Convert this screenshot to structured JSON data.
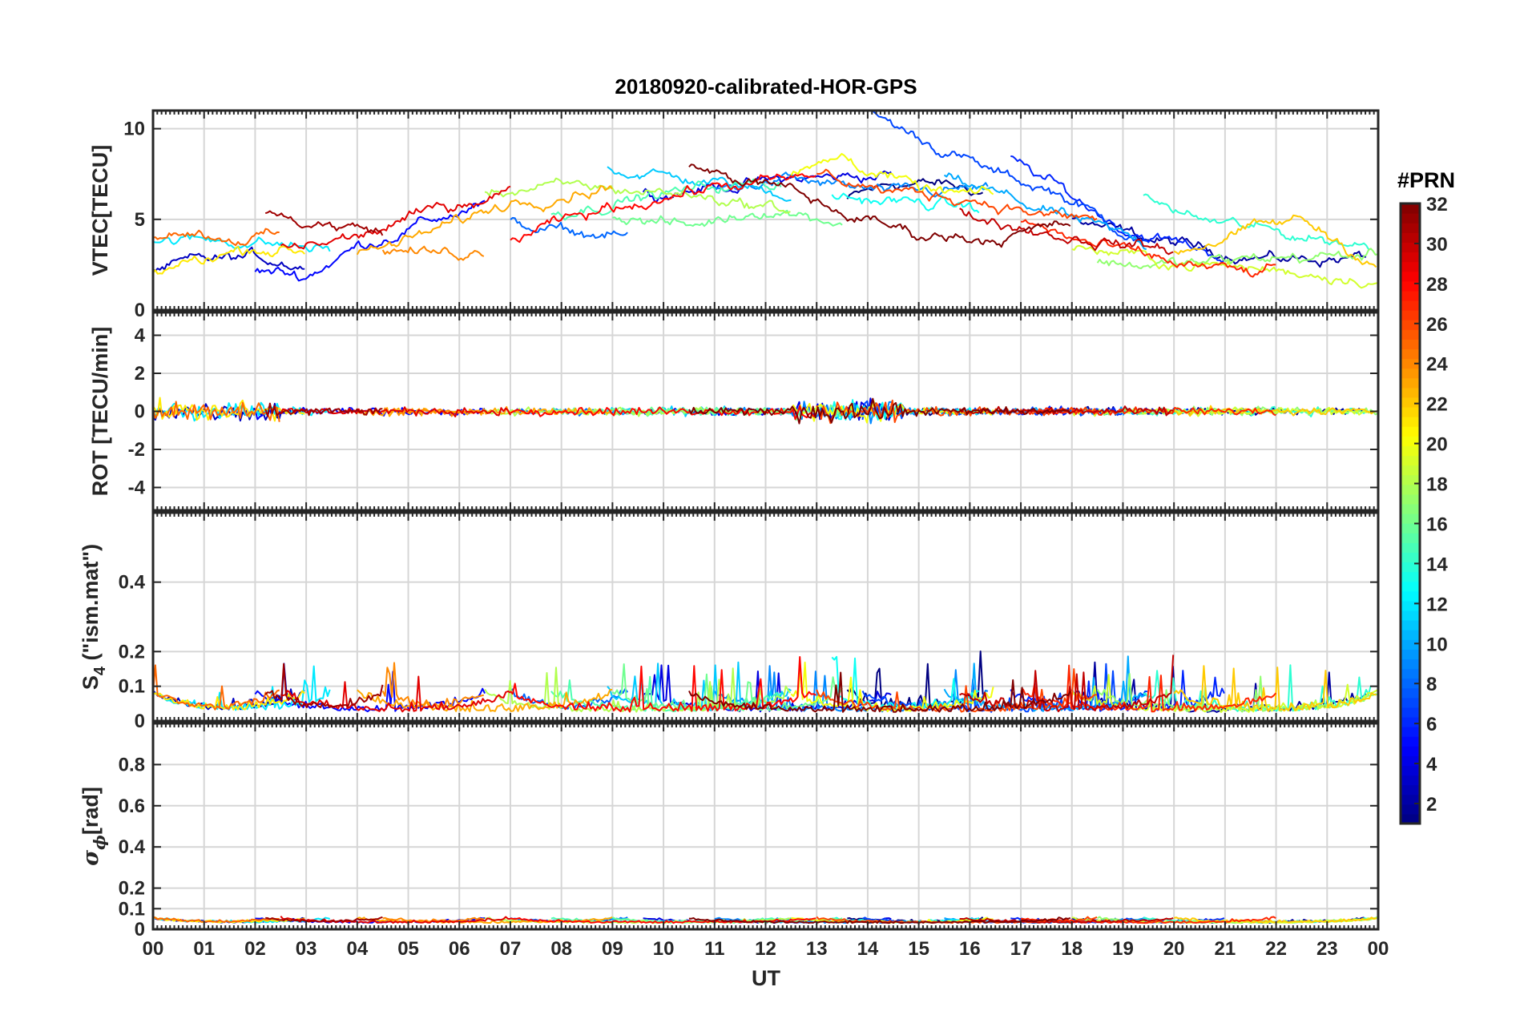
{
  "chart_data": {
    "type": "line",
    "title": "20180920-calibrated-HOR-GPS",
    "xlabel": "UT",
    "x_range_hours": [
      0,
      24
    ],
    "x_tick_labels": [
      "00",
      "01",
      "02",
      "03",
      "04",
      "05",
      "06",
      "07",
      "08",
      "09",
      "10",
      "11",
      "12",
      "13",
      "14",
      "15",
      "16",
      "17",
      "18",
      "19",
      "20",
      "21",
      "22",
      "23",
      "00"
    ],
    "grid": true,
    "panels": [
      {
        "id": "vtec",
        "ylabel": "VTEC[TECU]",
        "ylim": [
          0,
          11
        ],
        "yticks": [
          0,
          5,
          10
        ],
        "ytick_labels": [
          "0",
          "5",
          "10"
        ]
      },
      {
        "id": "rot",
        "ylabel": "ROT [TECU/min]",
        "ylim": [
          -5.2,
          5.2
        ],
        "yticks": [
          -4,
          -2,
          0,
          2,
          4
        ],
        "ytick_labels": [
          "-4",
          "-2",
          "0",
          "2",
          "4"
        ]
      },
      {
        "id": "s4",
        "ylabel_base": "S",
        "ylabel_sub": "4",
        "ylabel_rest": " (\"ism.mat\")",
        "ylim": [
          0,
          0.6
        ],
        "yticks": [
          0,
          0.1,
          0.2,
          0.4
        ],
        "ytick_labels": [
          "0",
          "0.1",
          "0.2",
          "0.4"
        ]
      },
      {
        "id": "sigma",
        "ylabel_base": "σ",
        "ylabel_sub": "ϕ",
        "ylabel_rest": "[rad]",
        "ylim": [
          0,
          1
        ],
        "yticks": [
          0,
          0.1,
          0.2,
          0.4,
          0.6,
          0.8
        ],
        "ytick_labels": [
          "0",
          "0.1",
          "0.2",
          "0.4",
          "0.6",
          "0.8"
        ]
      }
    ],
    "colorbar": {
      "label": "#PRN",
      "range": [
        1,
        32
      ],
      "colormap": "jet",
      "tick_values": [
        2,
        4,
        6,
        8,
        10,
        12,
        14,
        16,
        18,
        20,
        22,
        24,
        26,
        28,
        30,
        32
      ],
      "tick_labels": [
        "2",
        "4",
        "6",
        "8",
        "10",
        "12",
        "14",
        "16",
        "18",
        "20",
        "22",
        "24",
        "26",
        "28",
        "30",
        "32"
      ]
    },
    "series": [
      {
        "name": "PRN 1",
        "prn": 1,
        "vtec_hours": [
          13.6,
          16.3
        ],
        "vtec": [
          [
            13.6,
            6.1
          ],
          [
            14.5,
            7.0
          ],
          [
            15.5,
            6.9
          ],
          [
            16.3,
            6.5
          ]
        ]
      },
      {
        "name": "PRN 2",
        "prn": 2,
        "vtec_hours": [
          18.0,
          23.8
        ],
        "vtec": [
          [
            18.0,
            5.1
          ],
          [
            19.0,
            4.2
          ],
          [
            20.5,
            3.4
          ],
          [
            22.0,
            2.8
          ],
          [
            23.8,
            2.9
          ]
        ]
      },
      {
        "name": "PRN 3",
        "prn": 3,
        "vtec_hours": [
          0.0,
          3.0
        ],
        "vtec": [
          [
            0.0,
            2.2
          ],
          [
            1.0,
            2.7
          ],
          [
            2.0,
            2.9
          ],
          [
            3.0,
            2.5
          ]
        ]
      },
      {
        "name": "PRN 4",
        "prn": 4,
        "vtec_hours": [
          9.6,
          14.5
        ],
        "vtec": [
          [
            9.6,
            6.4
          ],
          [
            11.0,
            6.8
          ],
          [
            12.5,
            7.2
          ],
          [
            14.5,
            7.5
          ]
        ]
      },
      {
        "name": "PRN 5",
        "prn": 5,
        "vtec_hours": [
          2.0,
          6.5
        ],
        "vtec": [
          [
            2.0,
            2.2
          ],
          [
            3.0,
            1.9
          ],
          [
            4.0,
            3.5
          ],
          [
            5.5,
            5.0
          ],
          [
            6.5,
            5.8
          ]
        ]
      },
      {
        "name": "PRN 6",
        "prn": 6,
        "vtec_hours": [
          16.8,
          21.0
        ],
        "vtec": [
          [
            16.8,
            8.3
          ],
          [
            17.6,
            7.0
          ],
          [
            19.0,
            4.5
          ],
          [
            21.0,
            3.0
          ]
        ]
      },
      {
        "name": "PRN 7",
        "prn": 7,
        "vtec_hours": [
          13.9,
          19.5
        ],
        "vtec": [
          [
            13.9,
            11.0
          ],
          [
            15.0,
            9.5
          ],
          [
            16.5,
            7.5
          ],
          [
            17.7,
            6.5
          ],
          [
            19.5,
            3.6
          ]
        ]
      },
      {
        "name": "PRN 8",
        "prn": 8,
        "vtec_hours": [
          7.0,
          9.3
        ],
        "vtec": [
          [
            7.0,
            4.8
          ],
          [
            8.0,
            4.3
          ],
          [
            9.3,
            4.0
          ]
        ]
      },
      {
        "name": "PRN 9",
        "prn": 9,
        "vtec_hours": [
          11.0,
          16.4
        ],
        "vtec": [
          [
            11.0,
            6.7
          ],
          [
            12.5,
            7.2
          ],
          [
            14.5,
            6.4
          ],
          [
            16.4,
            6.7
          ]
        ]
      },
      {
        "name": "PRN 10",
        "prn": 10,
        "vtec_hours": [
          15.5,
          19.5
        ],
        "vtec": [
          [
            15.5,
            7.2
          ],
          [
            16.5,
            6.4
          ],
          [
            18.0,
            5.0
          ],
          [
            19.5,
            3.6
          ]
        ]
      },
      {
        "name": "PRN 11",
        "prn": 11,
        "vtec_hours": [
          8.9,
          12.5
        ],
        "vtec": [
          [
            8.9,
            7.8
          ],
          [
            10.5,
            7.2
          ],
          [
            12.5,
            6.4
          ]
        ]
      },
      {
        "name": "PRN 12",
        "prn": 12,
        "vtec_hours": [
          0.0,
          3.5
        ],
        "vtec": [
          [
            0.0,
            3.8
          ],
          [
            1.5,
            3.9
          ],
          [
            3.5,
            3.3
          ]
        ]
      },
      {
        "name": "PRN 13",
        "prn": 13,
        "vtec_hours": [
          13.3,
          16.2
        ],
        "vtec": [
          [
            13.3,
            6.2
          ],
          [
            14.5,
            6.0
          ],
          [
            16.2,
            5.6
          ]
        ]
      },
      {
        "name": "PRN 14",
        "prn": 14,
        "vtec_hours": [
          19.4,
          23.9
        ],
        "vtec": [
          [
            19.4,
            6.1
          ],
          [
            20.5,
            5.0
          ],
          [
            22.0,
            4.3
          ],
          [
            23.9,
            3.5
          ]
        ]
      },
      {
        "name": "PRN 15",
        "prn": 15,
        "vtec_hours": [
          7.8,
          12.3
        ],
        "vtec": [
          [
            7.8,
            5.3
          ],
          [
            9.5,
            6.2
          ],
          [
            11.0,
            6.8
          ],
          [
            12.3,
            7.0
          ]
        ]
      },
      {
        "name": "PRN 16",
        "prn": 16,
        "vtec_hours": [
          9.0,
          13.5
        ],
        "vtec": [
          [
            9.0,
            5.2
          ],
          [
            10.5,
            4.6
          ],
          [
            12.0,
            5.6
          ],
          [
            13.5,
            4.9
          ]
        ]
      },
      {
        "name": "PRN 17",
        "prn": 17,
        "vtec_hours": [
          18.5,
          24.0
        ],
        "vtec": [
          [
            18.5,
            2.6
          ],
          [
            20.0,
            2.5
          ],
          [
            22.0,
            2.9
          ],
          [
            24.0,
            3.0
          ]
        ]
      },
      {
        "name": "PRN 18",
        "prn": 18,
        "vtec_hours": [
          6.5,
          12.5
        ],
        "vtec": [
          [
            6.5,
            6.6
          ],
          [
            8.5,
            6.8
          ],
          [
            10.5,
            6.4
          ],
          [
            12.5,
            5.5
          ]
        ]
      },
      {
        "name": "PRN 19",
        "prn": 19,
        "vtec_hours": [
          18.0,
          24.0
        ],
        "vtec": [
          [
            18.0,
            3.5
          ],
          [
            20.0,
            2.6
          ],
          [
            22.0,
            2.2
          ],
          [
            24.0,
            1.7
          ]
        ]
      },
      {
        "name": "PRN 20",
        "prn": 20,
        "vtec_hours": [
          12.5,
          16.5
        ],
        "vtec": [
          [
            12.5,
            7.3
          ],
          [
            13.5,
            8.5
          ],
          [
            15.0,
            6.6
          ],
          [
            16.5,
            6.2
          ]
        ]
      },
      {
        "name": "PRN 21",
        "prn": 21,
        "vtec_hours": [
          0.0,
          3.0
        ],
        "vtec": [
          [
            0.0,
            2.0
          ],
          [
            1.0,
            2.9
          ],
          [
            2.0,
            3.5
          ],
          [
            3.0,
            3.2
          ]
        ]
      },
      {
        "name": "PRN 22",
        "prn": 22,
        "vtec_hours": [
          20.0,
          24.0
        ],
        "vtec": [
          [
            20.0,
            3.2
          ],
          [
            21.5,
            4.4
          ],
          [
            22.5,
            5.0
          ],
          [
            24.0,
            2.5
          ]
        ]
      },
      {
        "name": "PRN 23",
        "prn": 23,
        "vtec_hours": [
          4.0,
          9.0
        ],
        "vtec": [
          [
            4.0,
            3.0
          ],
          [
            5.0,
            3.8
          ],
          [
            7.0,
            6.0
          ],
          [
            9.0,
            6.9
          ]
        ]
      },
      {
        "name": "PRN 24",
        "prn": 24,
        "vtec_hours": [
          4.5,
          6.5
        ],
        "vtec": [
          [
            4.5,
            3.3
          ],
          [
            5.5,
            3.1
          ],
          [
            6.5,
            3.3
          ]
        ]
      },
      {
        "name": "PRN 25",
        "prn": 25,
        "vtec_hours": [
          0.0,
          2.5
        ],
        "vtec": [
          [
            0.0,
            4.1
          ],
          [
            0.5,
            4.5
          ],
          [
            1.5,
            4.0
          ],
          [
            2.5,
            4.1
          ]
        ]
      },
      {
        "name": "PRN 26",
        "prn": 26,
        "vtec_hours": [
          13.0,
          18.5
        ],
        "vtec": [
          [
            13.0,
            7.6
          ],
          [
            14.5,
            6.5
          ],
          [
            16.0,
            6.2
          ],
          [
            17.5,
            5.2
          ],
          [
            18.5,
            5.0
          ]
        ]
      },
      {
        "name": "PRN 27",
        "prn": 27,
        "vtec_hours": [
          17.0,
          22.0
        ],
        "vtec": [
          [
            17.0,
            4.9
          ],
          [
            18.5,
            3.5
          ],
          [
            20.0,
            2.6
          ],
          [
            21.5,
            2.0
          ],
          [
            22.0,
            2.2
          ]
        ]
      },
      {
        "name": "PRN 28",
        "prn": 28,
        "vtec_hours": [
          7.0,
          13.0
        ],
        "vtec": [
          [
            7.0,
            3.9
          ],
          [
            9.0,
            5.7
          ],
          [
            11.0,
            6.8
          ],
          [
            13.0,
            7.3
          ]
        ]
      },
      {
        "name": "PRN 29",
        "prn": 29,
        "vtec_hours": [
          2.5,
          7.0
        ],
        "vtec": [
          [
            2.5,
            3.4
          ],
          [
            4.0,
            4.0
          ],
          [
            5.5,
            5.5
          ],
          [
            7.0,
            6.7
          ]
        ]
      },
      {
        "name": "PRN 30",
        "prn": 30,
        "vtec_hours": [
          15.8,
          20.0
        ],
        "vtec": [
          [
            15.8,
            5.4
          ],
          [
            17.0,
            4.6
          ],
          [
            18.0,
            4.0
          ],
          [
            20.0,
            3.3
          ]
        ]
      },
      {
        "name": "PRN 31",
        "prn": 31,
        "vtec_hours": [
          2.2,
          4.5
        ],
        "vtec": [
          [
            2.2,
            5.3
          ],
          [
            3.0,
            4.8
          ],
          [
            4.0,
            4.5
          ],
          [
            4.5,
            4.4
          ]
        ]
      },
      {
        "name": "PRN 32",
        "prn": 32,
        "vtec_hours": [
          10.5,
          18.0
        ],
        "vtec": [
          [
            10.5,
            7.8
          ],
          [
            12.5,
            6.6
          ],
          [
            13.5,
            5.3
          ],
          [
            15.0,
            4.2
          ],
          [
            16.5,
            4.0
          ],
          [
            18.0,
            4.7
          ]
        ]
      }
    ]
  }
}
